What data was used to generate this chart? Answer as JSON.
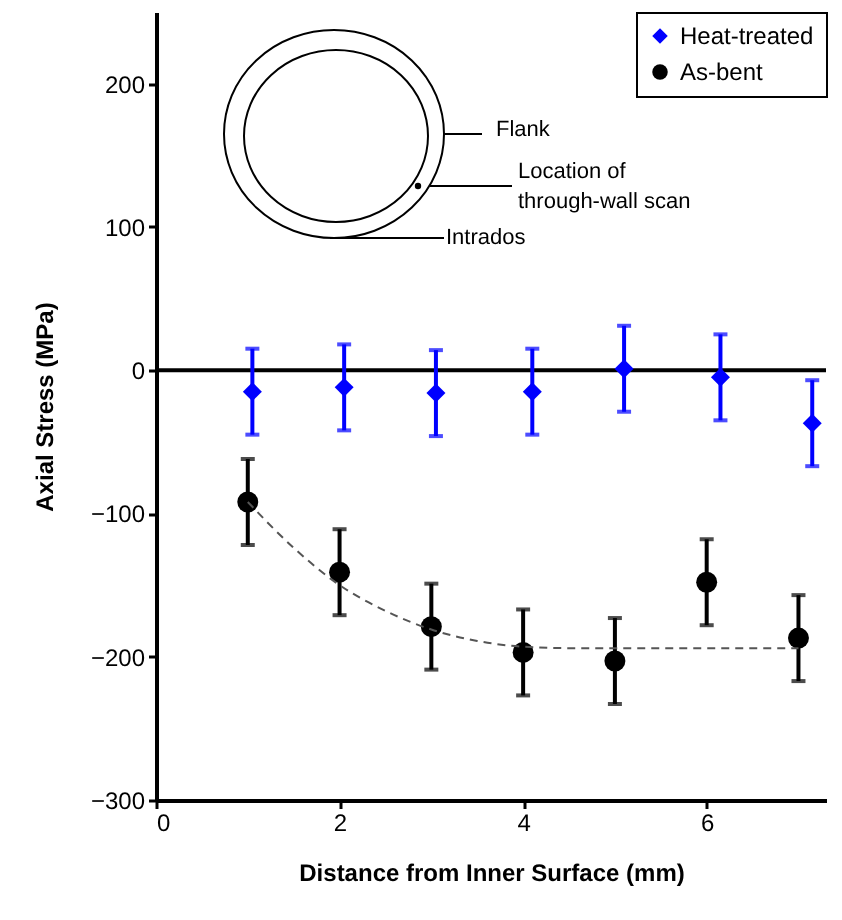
{
  "chart_data": {
    "type": "scatter",
    "xlabel": "Distance from Inner Surface (mm)",
    "ylabel": "Axial Stress (MPa)",
    "xlim": [
      0,
      7.3
    ],
    "xticks": [
      0,
      2,
      4,
      6
    ],
    "ylim": [
      -300,
      250
    ],
    "yticks": [
      -300,
      -200,
      -100,
      0,
      100,
      200
    ],
    "series": [
      {
        "name": "Heat-treated",
        "color": "#0000ff",
        "marker": "diamond",
        "x": [
          1.05,
          2.05,
          3.05,
          4.1,
          5.1,
          6.15,
          7.15
        ],
        "values": [
          -15,
          -12,
          -16,
          -15,
          1,
          -5,
          -37
        ],
        "errors": [
          30,
          30,
          30,
          30,
          30,
          30,
          30
        ]
      },
      {
        "name": "As-bent",
        "color": "#000000",
        "marker": "circle",
        "x": [
          1,
          2,
          3,
          4,
          5,
          6,
          7
        ],
        "values": [
          -92,
          -141,
          -179,
          -197,
          -203,
          -148,
          -187
        ],
        "errors": [
          30,
          30,
          30,
          30,
          30,
          30,
          30
        ]
      },
      {
        "type": "line",
        "color": "#555555",
        "line_style": "dashed",
        "x": [
          1,
          1.5,
          2,
          2.5,
          3,
          3.5,
          4,
          4.5,
          7
        ],
        "values": [
          -92,
          -124,
          -150,
          -168,
          -181,
          -189,
          -193,
          -194,
          -194
        ]
      }
    ],
    "ref_lines": [
      {
        "axis": "y",
        "value": 0,
        "color": "#000000"
      }
    ],
    "annotations": [
      "Flank",
      "Location of\nthrough-wall scan",
      "Intrados"
    ],
    "legend": "top right",
    "grid": false
  }
}
